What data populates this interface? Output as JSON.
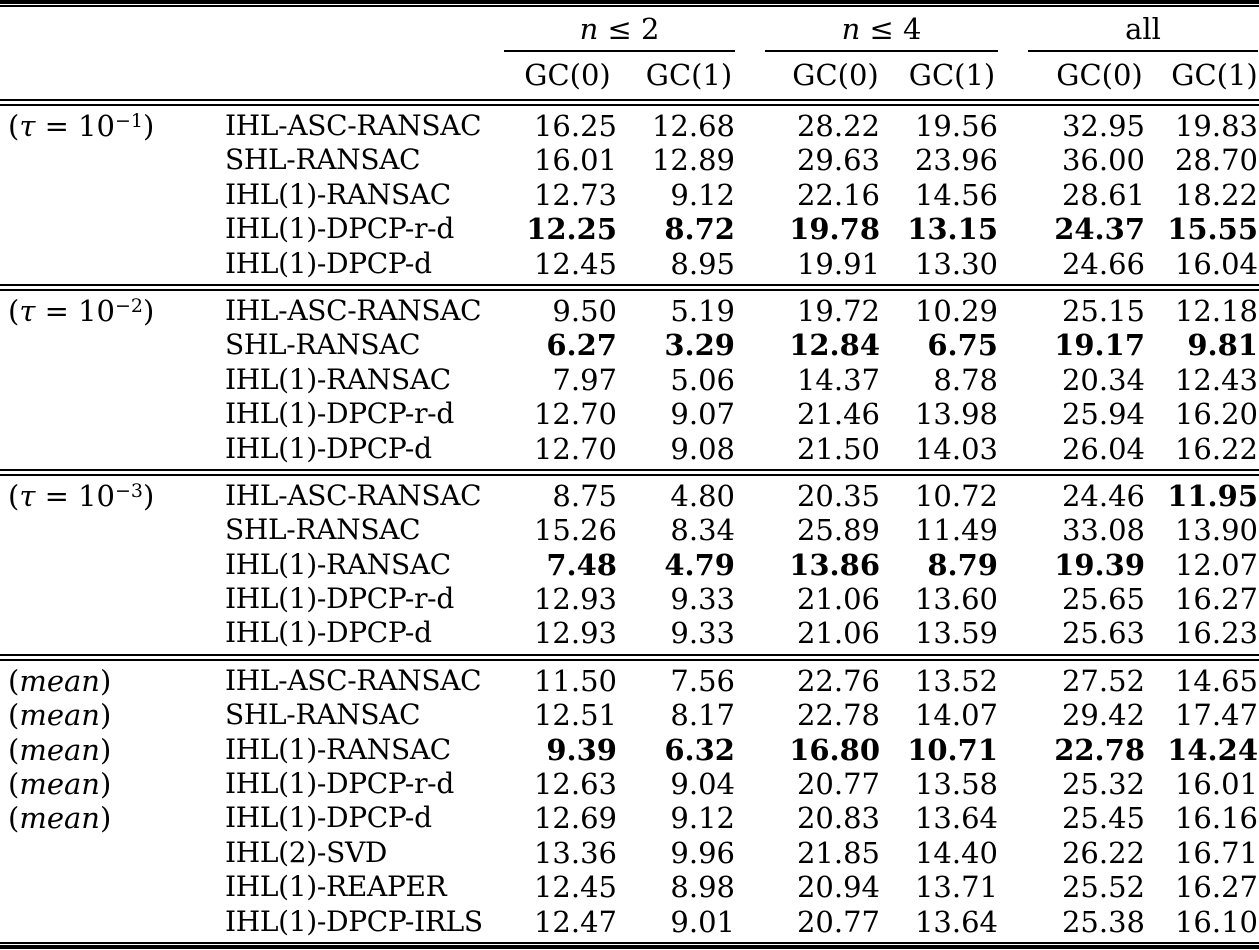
{
  "table": {
    "header": {
      "groups": [
        {
          "italic": "n",
          "rest": " ≤ 2"
        },
        {
          "italic": "n",
          "rest": " ≤ 4"
        },
        {
          "italic": "",
          "rest": "all"
        }
      ],
      "subcolumns": [
        "GC(0)",
        "GC(1)",
        "GC(0)",
        "GC(1)",
        "GC(0)",
        "GC(1)"
      ]
    },
    "sections": [
      {
        "id": "tau-1",
        "label_parts": {
          "pre": "(",
          "italic": "τ",
          "mid": " = 10",
          "sup": "−1",
          "post": ")"
        },
        "rows": [
          {
            "show_label": true,
            "method": "IHL-ASC-RANSAC",
            "values": [
              "16.25",
              "12.68",
              "28.22",
              "19.56",
              "32.95",
              "19.83"
            ],
            "bold": [
              0,
              0,
              0,
              0,
              0,
              0
            ]
          },
          {
            "show_label": false,
            "method": "SHL-RANSAC",
            "values": [
              "16.01",
              "12.89",
              "29.63",
              "23.96",
              "36.00",
              "28.70"
            ],
            "bold": [
              0,
              0,
              0,
              0,
              0,
              0
            ]
          },
          {
            "show_label": false,
            "method": "IHL(1)-RANSAC",
            "values": [
              "12.73",
              "9.12",
              "22.16",
              "14.56",
              "28.61",
              "18.22"
            ],
            "bold": [
              0,
              0,
              0,
              0,
              0,
              0
            ]
          },
          {
            "show_label": false,
            "method": "IHL(1)-DPCP-r-d",
            "values": [
              "12.25",
              "8.72",
              "19.78",
              "13.15",
              "24.37",
              "15.55"
            ],
            "bold": [
              1,
              1,
              1,
              1,
              1,
              1
            ]
          },
          {
            "show_label": false,
            "method": "IHL(1)-DPCP-d",
            "values": [
              "12.45",
              "8.95",
              "19.91",
              "13.30",
              "24.66",
              "16.04"
            ],
            "bold": [
              0,
              0,
              0,
              0,
              0,
              0
            ]
          }
        ]
      },
      {
        "id": "tau-2",
        "label_parts": {
          "pre": "(",
          "italic": "τ",
          "mid": " = 10",
          "sup": "−2",
          "post": ")"
        },
        "rows": [
          {
            "show_label": true,
            "method": "IHL-ASC-RANSAC",
            "values": [
              "9.50",
              "5.19",
              "19.72",
              "10.29",
              "25.15",
              "12.18"
            ],
            "bold": [
              0,
              0,
              0,
              0,
              0,
              0
            ]
          },
          {
            "show_label": false,
            "method": "SHL-RANSAC",
            "values": [
              "6.27",
              "3.29",
              "12.84",
              "6.75",
              "19.17",
              "9.81"
            ],
            "bold": [
              1,
              1,
              1,
              1,
              1,
              1
            ]
          },
          {
            "show_label": false,
            "method": "IHL(1)-RANSAC",
            "values": [
              "7.97",
              "5.06",
              "14.37",
              "8.78",
              "20.34",
              "12.43"
            ],
            "bold": [
              0,
              0,
              0,
              0,
              0,
              0
            ]
          },
          {
            "show_label": false,
            "method": "IHL(1)-DPCP-r-d",
            "values": [
              "12.70",
              "9.07",
              "21.46",
              "13.98",
              "25.94",
              "16.20"
            ],
            "bold": [
              0,
              0,
              0,
              0,
              0,
              0
            ]
          },
          {
            "show_label": false,
            "method": "IHL(1)-DPCP-d",
            "values": [
              "12.70",
              "9.08",
              "21.50",
              "14.03",
              "26.04",
              "16.22"
            ],
            "bold": [
              0,
              0,
              0,
              0,
              0,
              0
            ]
          }
        ]
      },
      {
        "id": "tau-3",
        "label_parts": {
          "pre": "(",
          "italic": "τ",
          "mid": " = 10",
          "sup": "−3",
          "post": ")"
        },
        "rows": [
          {
            "show_label": true,
            "method": "IHL-ASC-RANSAC",
            "values": [
              "8.75",
              "4.80",
              "20.35",
              "10.72",
              "24.46",
              "11.95"
            ],
            "bold": [
              0,
              0,
              0,
              0,
              0,
              1
            ]
          },
          {
            "show_label": false,
            "method": "SHL-RANSAC",
            "values": [
              "15.26",
              "8.34",
              "25.89",
              "11.49",
              "33.08",
              "13.90"
            ],
            "bold": [
              0,
              0,
              0,
              0,
              0,
              0
            ]
          },
          {
            "show_label": false,
            "method": "IHL(1)-RANSAC",
            "values": [
              "7.48",
              "4.79",
              "13.86",
              "8.79",
              "19.39",
              "12.07"
            ],
            "bold": [
              1,
              1,
              1,
              1,
              1,
              0
            ]
          },
          {
            "show_label": false,
            "method": "IHL(1)-DPCP-r-d",
            "values": [
              "12.93",
              "9.33",
              "21.06",
              "13.60",
              "25.65",
              "16.27"
            ],
            "bold": [
              0,
              0,
              0,
              0,
              0,
              0
            ]
          },
          {
            "show_label": false,
            "method": "IHL(1)-DPCP-d",
            "values": [
              "12.93",
              "9.33",
              "21.06",
              "13.59",
              "25.63",
              "16.23"
            ],
            "bold": [
              0,
              0,
              0,
              0,
              0,
              0
            ]
          }
        ]
      },
      {
        "id": "mean",
        "label_parts": {
          "pre": "(",
          "italic": "mean",
          "mid": "",
          "sup": "",
          "post": ")"
        },
        "rows": [
          {
            "show_label": true,
            "method": "IHL-ASC-RANSAC",
            "values": [
              "11.50",
              "7.56",
              "22.76",
              "13.52",
              "27.52",
              "14.65"
            ],
            "bold": [
              0,
              0,
              0,
              0,
              0,
              0
            ]
          },
          {
            "show_label": true,
            "method": "SHL-RANSAC",
            "values": [
              "12.51",
              "8.17",
              "22.78",
              "14.07",
              "29.42",
              "17.47"
            ],
            "bold": [
              0,
              0,
              0,
              0,
              0,
              0
            ]
          },
          {
            "show_label": true,
            "method": "IHL(1)-RANSAC",
            "values": [
              "9.39",
              "6.32",
              "16.80",
              "10.71",
              "22.78",
              "14.24"
            ],
            "bold": [
              1,
              1,
              1,
              1,
              1,
              1
            ]
          },
          {
            "show_label": true,
            "method": "IHL(1)-DPCP-r-d",
            "values": [
              "12.63",
              "9.04",
              "20.77",
              "13.58",
              "25.32",
              "16.01"
            ],
            "bold": [
              0,
              0,
              0,
              0,
              0,
              0
            ]
          },
          {
            "show_label": true,
            "method": "IHL(1)-DPCP-d",
            "values": [
              "12.69",
              "9.12",
              "20.83",
              "13.64",
              "25.45",
              "16.16"
            ],
            "bold": [
              0,
              0,
              0,
              0,
              0,
              0
            ]
          },
          {
            "show_label": false,
            "method": "IHL(2)-SVD",
            "values": [
              "13.36",
              "9.96",
              "21.85",
              "14.40",
              "26.22",
              "16.71"
            ],
            "bold": [
              0,
              0,
              0,
              0,
              0,
              0
            ]
          },
          {
            "show_label": false,
            "method": "IHL(1)-REAPER",
            "values": [
              "12.45",
              "8.98",
              "20.94",
              "13.71",
              "25.52",
              "16.27"
            ],
            "bold": [
              0,
              0,
              0,
              0,
              0,
              0
            ]
          },
          {
            "show_label": false,
            "method": "IHL(1)-DPCP-IRLS",
            "values": [
              "12.47",
              "9.01",
              "20.77",
              "13.64",
              "25.38",
              "16.10"
            ],
            "bold": [
              0,
              0,
              0,
              0,
              0,
              0
            ]
          }
        ]
      }
    ]
  }
}
